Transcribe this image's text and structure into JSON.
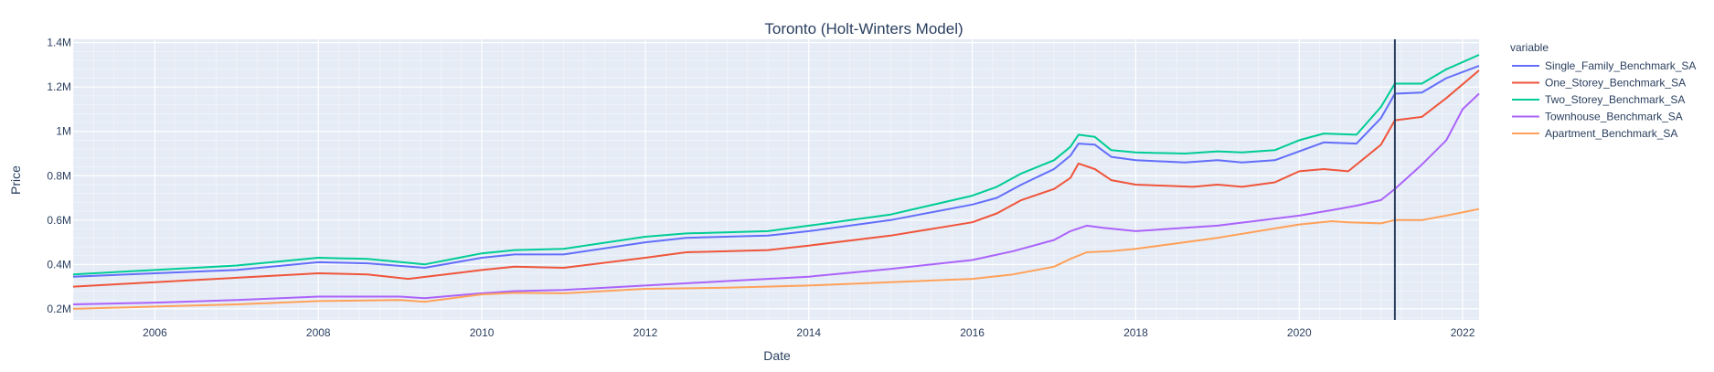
{
  "chart_data": {
    "type": "line",
    "title": "Toronto (Holt-Winters Model)",
    "xlabel": "Date",
    "ylabel": "Price",
    "x_ticks": [
      "2006",
      "2008",
      "2010",
      "2012",
      "2014",
      "2016",
      "2018",
      "2020",
      "2022"
    ],
    "y_ticks": [
      "0.2M",
      "0.4M",
      "0.6M",
      "0.8M",
      "1M",
      "1.2M",
      "1.4M"
    ],
    "xlim": [
      2005.0,
      2022.2
    ],
    "ylim": [
      150000,
      1415000
    ],
    "grid": true,
    "legend_title": "variable",
    "legend_position": "right",
    "vertical_marker_x": 2021.17,
    "series": [
      {
        "name": "Single_Family_Benchmark_SA",
        "color": "#636efa",
        "points": [
          [
            2005.0,
            345000
          ],
          [
            2006.0,
            360000
          ],
          [
            2007.0,
            375000
          ],
          [
            2008.0,
            410000
          ],
          [
            2008.6,
            405000
          ],
          [
            2009.3,
            385000
          ],
          [
            2010.0,
            430000
          ],
          [
            2010.4,
            445000
          ],
          [
            2011.0,
            445000
          ],
          [
            2012.0,
            500000
          ],
          [
            2012.5,
            520000
          ],
          [
            2013.5,
            530000
          ],
          [
            2014.0,
            550000
          ],
          [
            2015.0,
            600000
          ],
          [
            2016.0,
            670000
          ],
          [
            2016.3,
            700000
          ],
          [
            2016.6,
            760000
          ],
          [
            2017.0,
            830000
          ],
          [
            2017.2,
            890000
          ],
          [
            2017.3,
            945000
          ],
          [
            2017.5,
            940000
          ],
          [
            2017.7,
            885000
          ],
          [
            2018.0,
            870000
          ],
          [
            2018.6,
            860000
          ],
          [
            2019.0,
            870000
          ],
          [
            2019.3,
            860000
          ],
          [
            2019.7,
            870000
          ],
          [
            2020.0,
            910000
          ],
          [
            2020.3,
            950000
          ],
          [
            2020.7,
            945000
          ],
          [
            2021.0,
            1060000
          ],
          [
            2021.17,
            1170000
          ],
          [
            2021.5,
            1175000
          ],
          [
            2021.8,
            1240000
          ],
          [
            2022.2,
            1295000
          ]
        ]
      },
      {
        "name": "One_Storey_Benchmark_SA",
        "color": "#ef553b",
        "points": [
          [
            2005.0,
            300000
          ],
          [
            2006.0,
            320000
          ],
          [
            2007.0,
            340000
          ],
          [
            2008.0,
            360000
          ],
          [
            2008.6,
            355000
          ],
          [
            2009.1,
            335000
          ],
          [
            2010.0,
            375000
          ],
          [
            2010.4,
            390000
          ],
          [
            2011.0,
            385000
          ],
          [
            2012.0,
            430000
          ],
          [
            2012.5,
            455000
          ],
          [
            2013.5,
            465000
          ],
          [
            2014.0,
            485000
          ],
          [
            2015.0,
            530000
          ],
          [
            2016.0,
            590000
          ],
          [
            2016.3,
            630000
          ],
          [
            2016.6,
            690000
          ],
          [
            2017.0,
            740000
          ],
          [
            2017.2,
            790000
          ],
          [
            2017.3,
            855000
          ],
          [
            2017.5,
            830000
          ],
          [
            2017.7,
            780000
          ],
          [
            2018.0,
            760000
          ],
          [
            2018.7,
            750000
          ],
          [
            2019.0,
            760000
          ],
          [
            2019.3,
            750000
          ],
          [
            2019.7,
            770000
          ],
          [
            2020.0,
            820000
          ],
          [
            2020.3,
            830000
          ],
          [
            2020.6,
            820000
          ],
          [
            2021.0,
            940000
          ],
          [
            2021.17,
            1050000
          ],
          [
            2021.5,
            1065000
          ],
          [
            2021.8,
            1150000
          ],
          [
            2022.2,
            1275000
          ]
        ]
      },
      {
        "name": "Two_Storey_Benchmark_SA",
        "color": "#00cc96",
        "points": [
          [
            2005.0,
            355000
          ],
          [
            2006.0,
            375000
          ],
          [
            2007.0,
            395000
          ],
          [
            2008.0,
            430000
          ],
          [
            2008.6,
            425000
          ],
          [
            2009.3,
            400000
          ],
          [
            2010.0,
            450000
          ],
          [
            2010.4,
            465000
          ],
          [
            2011.0,
            470000
          ],
          [
            2012.0,
            525000
          ],
          [
            2012.5,
            540000
          ],
          [
            2013.5,
            550000
          ],
          [
            2014.0,
            575000
          ],
          [
            2015.0,
            625000
          ],
          [
            2016.0,
            710000
          ],
          [
            2016.3,
            750000
          ],
          [
            2016.6,
            810000
          ],
          [
            2017.0,
            870000
          ],
          [
            2017.2,
            930000
          ],
          [
            2017.3,
            985000
          ],
          [
            2017.5,
            975000
          ],
          [
            2017.7,
            915000
          ],
          [
            2018.0,
            905000
          ],
          [
            2018.6,
            900000
          ],
          [
            2019.0,
            910000
          ],
          [
            2019.3,
            905000
          ],
          [
            2019.7,
            915000
          ],
          [
            2020.0,
            960000
          ],
          [
            2020.3,
            990000
          ],
          [
            2020.7,
            985000
          ],
          [
            2021.0,
            1110000
          ],
          [
            2021.17,
            1215000
          ],
          [
            2021.5,
            1215000
          ],
          [
            2021.8,
            1280000
          ],
          [
            2022.2,
            1345000
          ]
        ]
      },
      {
        "name": "Townhouse_Benchmark_SA",
        "color": "#ab63fa",
        "points": [
          [
            2005.0,
            220000
          ],
          [
            2006.0,
            228000
          ],
          [
            2007.0,
            240000
          ],
          [
            2008.0,
            255000
          ],
          [
            2009.0,
            255000
          ],
          [
            2009.3,
            248000
          ],
          [
            2010.0,
            270000
          ],
          [
            2010.4,
            280000
          ],
          [
            2011.0,
            285000
          ],
          [
            2012.0,
            305000
          ],
          [
            2013.0,
            325000
          ],
          [
            2014.0,
            345000
          ],
          [
            2015.0,
            380000
          ],
          [
            2016.0,
            420000
          ],
          [
            2016.5,
            460000
          ],
          [
            2017.0,
            510000
          ],
          [
            2017.2,
            550000
          ],
          [
            2017.4,
            575000
          ],
          [
            2017.6,
            565000
          ],
          [
            2018.0,
            550000
          ],
          [
            2019.0,
            575000
          ],
          [
            2020.0,
            620000
          ],
          [
            2020.4,
            645000
          ],
          [
            2020.7,
            665000
          ],
          [
            2021.0,
            690000
          ],
          [
            2021.17,
            740000
          ],
          [
            2021.5,
            850000
          ],
          [
            2021.8,
            960000
          ],
          [
            2022.0,
            1100000
          ],
          [
            2022.2,
            1170000
          ]
        ]
      },
      {
        "name": "Apartment_Benchmark_SA",
        "color": "#ffa15a",
        "points": [
          [
            2005.0,
            200000
          ],
          [
            2006.0,
            210000
          ],
          [
            2007.0,
            220000
          ],
          [
            2008.0,
            235000
          ],
          [
            2009.0,
            240000
          ],
          [
            2009.3,
            232000
          ],
          [
            2010.0,
            265000
          ],
          [
            2010.4,
            272000
          ],
          [
            2011.0,
            270000
          ],
          [
            2012.0,
            290000
          ],
          [
            2013.0,
            295000
          ],
          [
            2014.0,
            305000
          ],
          [
            2015.0,
            320000
          ],
          [
            2016.0,
            335000
          ],
          [
            2016.5,
            355000
          ],
          [
            2017.0,
            390000
          ],
          [
            2017.2,
            425000
          ],
          [
            2017.4,
            455000
          ],
          [
            2017.7,
            460000
          ],
          [
            2018.0,
            470000
          ],
          [
            2019.0,
            520000
          ],
          [
            2020.0,
            580000
          ],
          [
            2020.4,
            595000
          ],
          [
            2020.6,
            590000
          ],
          [
            2021.0,
            585000
          ],
          [
            2021.17,
            600000
          ],
          [
            2021.5,
            600000
          ],
          [
            2021.8,
            620000
          ],
          [
            2022.2,
            650000
          ]
        ]
      }
    ]
  }
}
